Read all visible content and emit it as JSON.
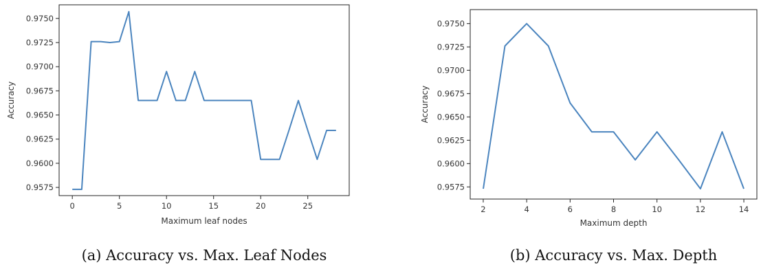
{
  "chart_data": [
    {
      "type": "line",
      "xlabel": "Maximum leaf nodes",
      "ylabel": "Accuracy",
      "xlim": [
        -1.4,
        29.4
      ],
      "ylim": [
        0.95665,
        0.97641
      ],
      "xticks": [
        0,
        5,
        10,
        15,
        20,
        25
      ],
      "yticks": [
        0.9575,
        0.96,
        0.9625,
        0.965,
        0.9675,
        0.97,
        0.9725,
        0.975
      ],
      "ytick_labels": [
        "0.9575",
        "0.9600",
        "0.9625",
        "0.9650",
        "0.9675",
        "0.9700",
        "0.9725",
        "0.9750"
      ],
      "grid": false,
      "line_color": "#4a84be",
      "x": [
        0,
        1,
        2,
        3,
        4,
        5,
        6,
        7,
        8,
        9,
        10,
        11,
        12,
        13,
        14,
        15,
        16,
        17,
        18,
        19,
        20,
        21,
        22,
        23,
        24,
        25,
        26,
        27,
        28
      ],
      "y": [
        0.9573,
        0.9573,
        0.9726,
        0.9726,
        0.9725,
        0.9726,
        0.9757,
        0.9665,
        0.9665,
        0.9665,
        0.9695,
        0.9665,
        0.9665,
        0.9695,
        0.9665,
        0.9665,
        0.9665,
        0.9665,
        0.9665,
        0.9665,
        0.9604,
        0.9604,
        0.9604,
        0.9634,
        0.9665,
        0.9634,
        0.9604,
        0.9634,
        0.9634
      ],
      "caption": "(a) Accuracy vs. Max. Leaf Nodes"
    },
    {
      "type": "line",
      "xlabel": "Maximum depth",
      "ylabel": "Accuracy",
      "xlim": [
        1.4,
        14.6
      ],
      "ylim": [
        0.9562,
        0.9765
      ],
      "xticks": [
        2,
        4,
        6,
        8,
        10,
        12,
        14
      ],
      "yticks": [
        0.9575,
        0.96,
        0.9625,
        0.965,
        0.9675,
        0.97,
        0.9725,
        0.975
      ],
      "ytick_labels": [
        "0.9575",
        "0.9600",
        "0.9625",
        "0.9650",
        "0.9675",
        "0.9700",
        "0.9725",
        "0.9750"
      ],
      "grid": false,
      "line_color": "#4a84be",
      "x": [
        2,
        3,
        4,
        5,
        6,
        7,
        8,
        9,
        10,
        11,
        12,
        13,
        14
      ],
      "y": [
        0.9573,
        0.9726,
        0.975,
        0.9726,
        0.9665,
        0.9634,
        0.9634,
        0.9604,
        0.9634,
        0.9604,
        0.9573,
        0.9634,
        0.9573
      ],
      "caption": "(b) Accuracy vs. Max. Depth"
    }
  ]
}
